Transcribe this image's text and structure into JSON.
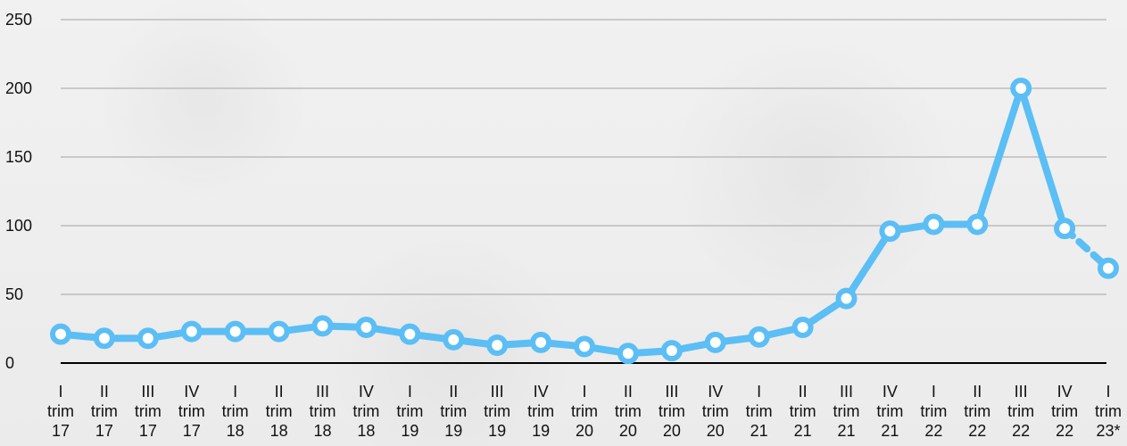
{
  "chart_data": {
    "type": "line",
    "title": "",
    "xlabel": "",
    "ylabel": "",
    "categories": [
      "I trim 17",
      "II trim 17",
      "III trim 17",
      "IV trim 17",
      "I trim 18",
      "II trim 18",
      "III trim 18",
      "IV trim 18",
      "I trim 19",
      "II trim 19",
      "III trim 19",
      "IV trim 19",
      "I trim 20",
      "II trim 20",
      "III trim 20",
      "IV trim 20",
      "I trim 21",
      "II trim 21",
      "III trim 21",
      "IV trim 21",
      "I trim 22",
      "II trim 22",
      "III trim 22",
      "IV trim 22",
      "I trim 23*"
    ],
    "values": [
      21,
      18,
      18,
      23,
      23,
      23,
      27,
      26,
      21,
      17,
      13,
      15,
      12,
      7,
      9,
      15,
      19,
      26,
      47,
      96,
      101,
      101,
      200,
      98,
      69
    ],
    "ylim": [
      0,
      250
    ],
    "yticks": [
      0,
      50,
      100,
      150,
      200,
      250
    ],
    "grid": true,
    "legend": "none",
    "forecast_from_index": 23,
    "line_color": "#5bbef5",
    "marker_fill": "#ffffff",
    "grid_color": "#bcbcbc",
    "axis_color": "#000000"
  }
}
